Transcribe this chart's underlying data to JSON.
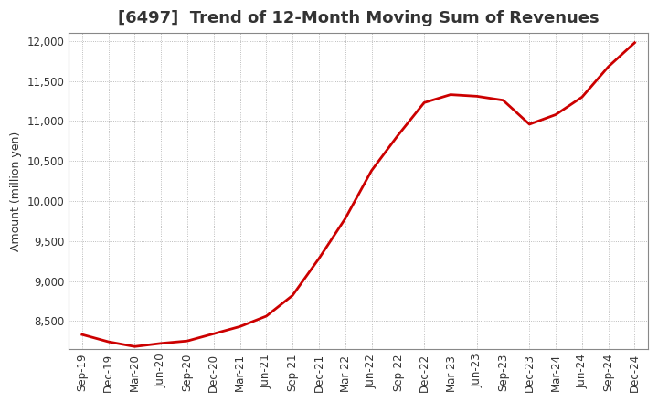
{
  "title": "[6497]  Trend of 12-Month Moving Sum of Revenues",
  "ylabel": "Amount (million yen)",
  "background_color": "#ffffff",
  "plot_bg_color": "#ffffff",
  "line_color": "#cc0000",
  "grid_color": "#aaaaaa",
  "ylim": [
    8150,
    12100
  ],
  "yticks": [
    8500,
    9000,
    9500,
    10000,
    10500,
    11000,
    11500,
    12000
  ],
  "x_labels": [
    "Sep-19",
    "Dec-19",
    "Mar-20",
    "Jun-20",
    "Sep-20",
    "Dec-20",
    "Mar-21",
    "Jun-21",
    "Sep-21",
    "Dec-21",
    "Mar-22",
    "Jun-22",
    "Sep-22",
    "Dec-22",
    "Mar-23",
    "Jun-23",
    "Sep-23",
    "Dec-23",
    "Mar-24",
    "Jun-24",
    "Sep-24",
    "Dec-24"
  ],
  "y_values": [
    8330,
    8240,
    8180,
    8220,
    8250,
    8340,
    8430,
    8560,
    8820,
    9280,
    9780,
    10380,
    10820,
    11230,
    11330,
    11310,
    11260,
    10960,
    11080,
    11300,
    11680,
    11980
  ],
  "title_fontsize": 13,
  "axis_fontsize": 8.5,
  "label_fontsize": 9
}
